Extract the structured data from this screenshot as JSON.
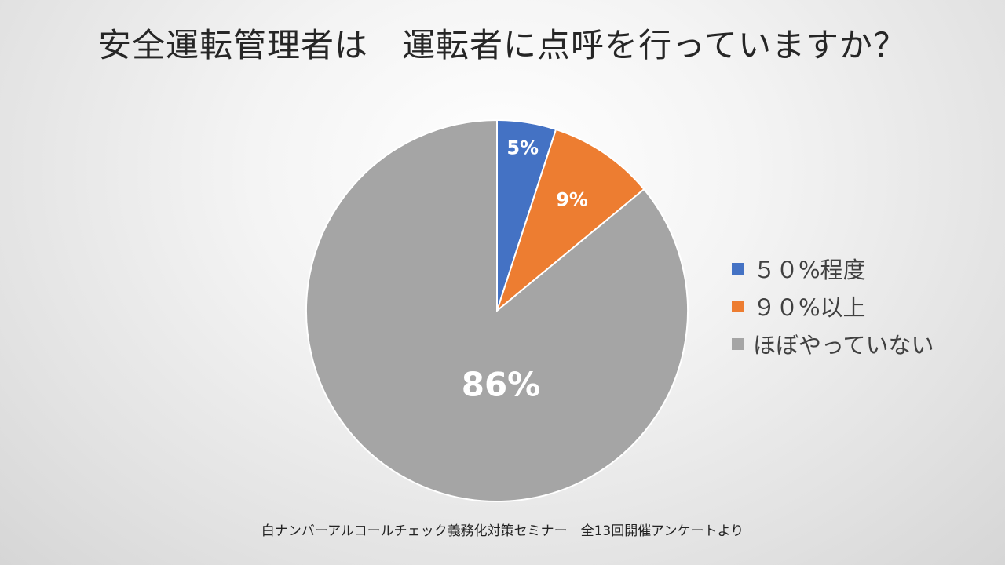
{
  "chart_data": {
    "type": "pie",
    "title": "安全運転管理者は　運転者に点呼を行っていますか？",
    "categories": [
      "５０%程度",
      "９０%以上",
      "ほぼやっていない"
    ],
    "values": [
      5,
      9,
      86
    ],
    "data_labels": [
      "5%",
      "9%",
      "86%"
    ],
    "colors": [
      "#4472c4",
      "#ed7d31",
      "#a5a5a5"
    ],
    "legend_position": "right",
    "start_angle": "12 o'clock",
    "direction": "clockwise"
  },
  "footnote": "白ナンバーアルコールチェック義務化対策セミナー　全13回開催アンケートより"
}
